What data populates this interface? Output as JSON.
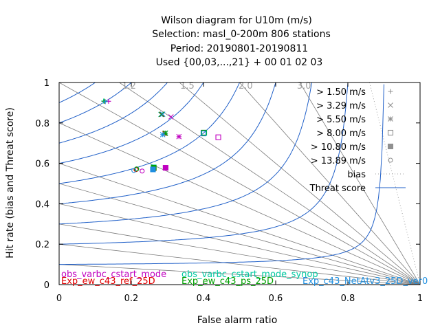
{
  "chart_data": {
    "type": "scatter",
    "title_lines": [
      "Wilson diagram  for U10m (m/s)",
      "Selection: masl_0-200m    806 stations",
      "Period: 20190801-20190811",
      "Used {00,03,...,21} + 00 01 02 03"
    ],
    "xlabel": "False alarm ratio",
    "ylabel": "Hit rate (bias and Threat score)",
    "xlim": [
      0,
      1
    ],
    "ylim": [
      0,
      1
    ],
    "x_ticks": [
      "0",
      "0.2",
      "0.4",
      "0.6",
      "0.8",
      "1"
    ],
    "y_ticks": [
      "0",
      "0.2",
      "0.4",
      "0.6",
      "0.8",
      "1"
    ],
    "bias_isolines": [
      1.2,
      1.5,
      2.0,
      3.0,
      1.0,
      0.8,
      0.6,
      0.5,
      0.4,
      0.3,
      0.2,
      0.1
    ],
    "bias_labels": [
      "1.2",
      "1.5",
      "2.0",
      "3.0"
    ],
    "threat_score_isolines": [
      0.1,
      0.2,
      0.3,
      0.4,
      0.5,
      0.6,
      0.7,
      0.8,
      0.9
    ],
    "threshold_legend": [
      {
        "label": "> 1.50 m/s",
        "marker": "plus"
      },
      {
        "label": "> 3.29 m/s",
        "marker": "cross"
      },
      {
        "label": "> 5.50 m/s",
        "marker": "star"
      },
      {
        "label": "> 8.00 m/s",
        "marker": "open-square"
      },
      {
        "label": "> 10.80 m/s",
        "marker": "filled-square"
      },
      {
        "label": "> 13.89 m/s",
        "marker": "open-circle"
      }
    ],
    "line_legend": [
      {
        "label": "bias",
        "style": "dotted",
        "color": "#a0a0a0"
      },
      {
        "label": "Threat score",
        "style": "solid",
        "color": "#1f5fc8"
      }
    ],
    "series": [
      {
        "name": "obs_varbc_cstart_mode",
        "color": "#c000c0",
        "points": [
          {
            "x": 0.137,
            "y": 0.907,
            "marker": "plus"
          },
          {
            "x": 0.31,
            "y": 0.83,
            "marker": "cross"
          },
          {
            "x": 0.332,
            "y": 0.732,
            "marker": "star"
          },
          {
            "x": 0.441,
            "y": 0.729,
            "marker": "open-square"
          },
          {
            "x": 0.295,
            "y": 0.578,
            "marker": "filled-square"
          },
          {
            "x": 0.23,
            "y": 0.562,
            "marker": "open-circle"
          }
        ]
      },
      {
        "name": "obs_varbc_cstart_mode_synop",
        "color": "#00c8a0",
        "points": [
          {
            "x": 0.123,
            "y": 0.908,
            "marker": "plus"
          },
          {
            "x": 0.282,
            "y": 0.842,
            "marker": "cross"
          },
          {
            "x": 0.295,
            "y": 0.75,
            "marker": "star"
          },
          {
            "x": 0.402,
            "y": 0.751,
            "marker": "open-square"
          },
          {
            "x": 0.262,
            "y": 0.58,
            "marker": "filled-square"
          },
          {
            "x": 0.214,
            "y": 0.572,
            "marker": "open-circle"
          }
        ]
      },
      {
        "name": "Exp_ew_c43_ref_25D",
        "color": "#e00000",
        "points": [
          {
            "x": 0.125,
            "y": 0.907,
            "marker": "plus"
          },
          {
            "x": 0.284,
            "y": 0.842,
            "marker": "cross"
          },
          {
            "x": 0.293,
            "y": 0.748,
            "marker": "star"
          },
          {
            "x": 0.4,
            "y": 0.751,
            "marker": "open-square"
          },
          {
            "x": 0.262,
            "y": 0.576,
            "marker": "filled-square"
          },
          {
            "x": 0.213,
            "y": 0.569,
            "marker": "open-circle"
          }
        ]
      },
      {
        "name": "Exp_ew_c43_ps_25D",
        "color": "#00a000",
        "points": [
          {
            "x": 0.125,
            "y": 0.908,
            "marker": "plus"
          },
          {
            "x": 0.285,
            "y": 0.843,
            "marker": "cross"
          },
          {
            "x": 0.294,
            "y": 0.749,
            "marker": "star"
          },
          {
            "x": 0.401,
            "y": 0.752,
            "marker": "open-square"
          },
          {
            "x": 0.262,
            "y": 0.578,
            "marker": "filled-square"
          },
          {
            "x": 0.215,
            "y": 0.572,
            "marker": "open-circle"
          }
        ]
      },
      {
        "name": "Exp_c43_NetAtv3_25D_ver0",
        "color": "#1f8fe0",
        "points": [
          {
            "x": 0.128,
            "y": 0.905,
            "marker": "plus"
          },
          {
            "x": 0.287,
            "y": 0.843,
            "marker": "cross"
          },
          {
            "x": 0.287,
            "y": 0.742,
            "marker": "star"
          },
          {
            "x": 0.4,
            "y": 0.748,
            "marker": "open-square"
          },
          {
            "x": 0.26,
            "y": 0.57,
            "marker": "filled-square"
          },
          {
            "x": 0.207,
            "y": 0.565,
            "marker": "open-circle"
          }
        ]
      }
    ],
    "series_labels": [
      {
        "text": "obs_varbc_cstart_mode",
        "color": "#c000c0"
      },
      {
        "text": "obs_varbc_cstart_mode_synop",
        "color": "#00c8a0"
      },
      {
        "text": "Exp_ew_c43_ref_25D",
        "color": "#e00000"
      },
      {
        "text": "Exp_ew_c43_ps_25D",
        "color": "#00a000"
      },
      {
        "text": "Exp_c43_NetAtv3_25D_ver0",
        "color": "#1f8fe0"
      }
    ],
    "grid": false,
    "legend_position": "top-right inside plot"
  }
}
